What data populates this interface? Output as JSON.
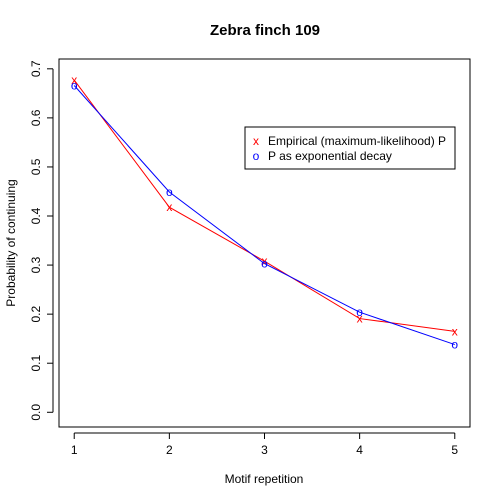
{
  "chart_data": {
    "type": "line",
    "title": "Zebra finch 109",
    "xlabel": "Motif repetition",
    "ylabel": "Probability of continuing",
    "x": [
      1,
      2,
      3,
      4,
      5
    ],
    "xlim": [
      0.84,
      5.16
    ],
    "ylim": [
      -0.03,
      0.72
    ],
    "x_ticks": [
      "1",
      "2",
      "3",
      "4",
      "5"
    ],
    "y_ticks": [
      "0.0",
      "0.1",
      "0.2",
      "0.3",
      "0.4",
      "0.5",
      "0.6",
      "0.7"
    ],
    "grid": false,
    "legend_position": "top-right",
    "series": [
      {
        "name": "Empirical (maximum-likelihood) P",
        "marker": "x",
        "color": "#ff0000",
        "values": [
          0.677,
          0.418,
          0.308,
          0.191,
          0.165
        ]
      },
      {
        "name": "P as exponential decay",
        "marker": "o",
        "color": "#0000ff",
        "values": [
          0.666,
          0.449,
          0.303,
          0.204,
          0.138
        ]
      }
    ]
  }
}
